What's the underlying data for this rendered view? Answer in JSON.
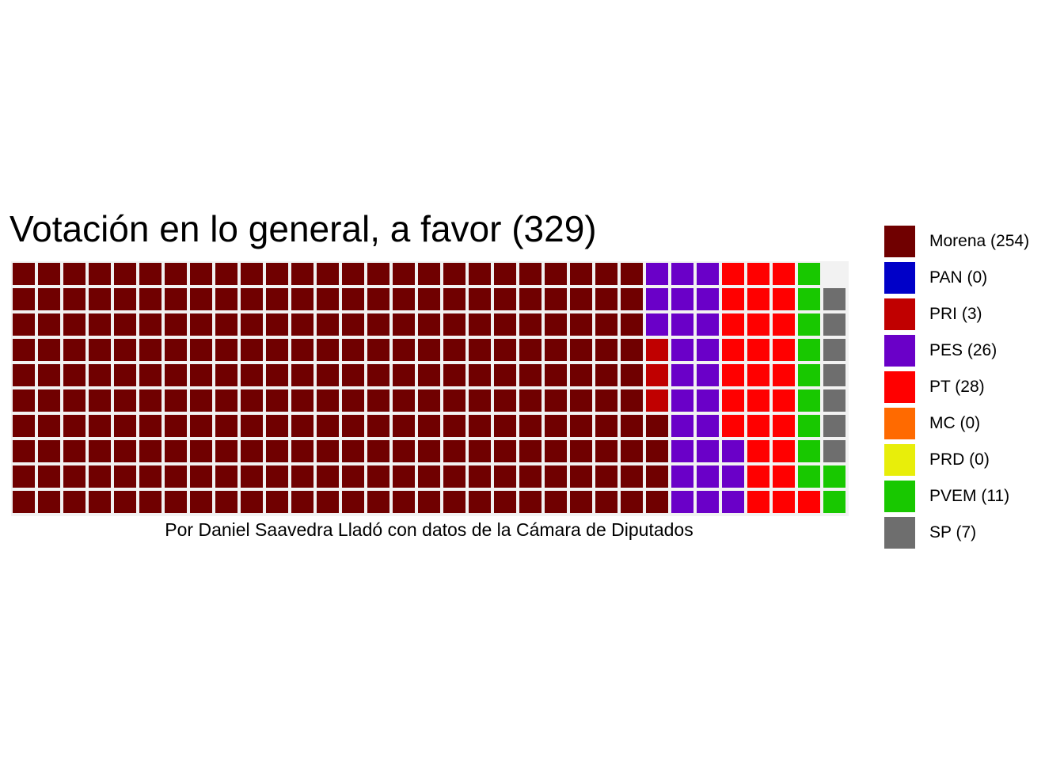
{
  "chart_data": {
    "type": "waffle",
    "title": "Votación en lo general, a favor (329)",
    "caption": "Por Daniel Saavedra Lladó con datos de la Cámara de Diputados",
    "rows": 10,
    "fill_order": "column-major, bottom-to-top",
    "legend_position": "right",
    "grid": false,
    "series": [
      {
        "name": "Morena (254)",
        "value": 254,
        "color": "#700000"
      },
      {
        "name": "PAN (0)",
        "value": 0,
        "color": "#0000c8"
      },
      {
        "name": "PRI (3)",
        "value": 3,
        "color": "#c00000"
      },
      {
        "name": "PES (26)",
        "value": 26,
        "color": "#6a00c8"
      },
      {
        "name": "PT (28)",
        "value": 28,
        "color": "#ff0000"
      },
      {
        "name": "MC (0)",
        "value": 0,
        "color": "#ff6a00"
      },
      {
        "name": "PRD (0)",
        "value": 0,
        "color": "#e8ee0a"
      },
      {
        "name": "PVEM (11)",
        "value": 11,
        "color": "#18c800"
      },
      {
        "name": "SP (7)",
        "value": 7,
        "color": "#6e6e6e"
      }
    ]
  }
}
